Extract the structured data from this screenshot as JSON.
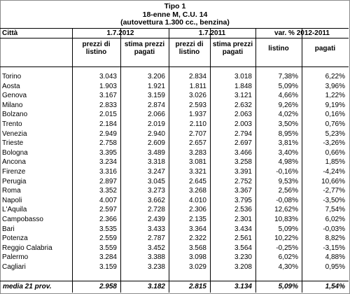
{
  "title": {
    "line1": "Tipo 1",
    "line2": "18-enne M, C.U. 14",
    "line3": "(autovettura 1.300 cc., benzina)"
  },
  "header": {
    "city": "Città",
    "year2012": "1.7.2012",
    "year2011": "1.7.2011",
    "var": "var. % 2012-2011",
    "list_price_l1": "prezzi di",
    "list_price_l2": "listino",
    "paid_est_l1": "stima prezzi",
    "paid_est_l2": "pagati",
    "listino": "listino",
    "pagati": "pagati"
  },
  "rows": [
    {
      "city": "Torino",
      "l12": "3.043",
      "p12": "3.206",
      "l11": "2.834",
      "p11": "3.018",
      "vl": "7,38%",
      "vp": "6,22%"
    },
    {
      "city": "Aosta",
      "l12": "1.903",
      "p12": "1.921",
      "l11": "1.811",
      "p11": "1.848",
      "vl": "5,09%",
      "vp": "3,96%"
    },
    {
      "city": "Genova",
      "l12": "3.167",
      "p12": "3.159",
      "l11": "3.026",
      "p11": "3.121",
      "vl": "4,66%",
      "vp": "1,22%"
    },
    {
      "city": "Milano",
      "l12": "2.833",
      "p12": "2.874",
      "l11": "2.593",
      "p11": "2.632",
      "vl": "9,26%",
      "vp": "9,19%"
    },
    {
      "city": "Bolzano",
      "l12": "2.015",
      "p12": "2.066",
      "l11": "1.937",
      "p11": "2.063",
      "vl": "4,02%",
      "vp": "0,16%"
    },
    {
      "city": "Trento",
      "l12": "2.184",
      "p12": "2.019",
      "l11": "2.110",
      "p11": "2.003",
      "vl": "3,50%",
      "vp": "0,76%"
    },
    {
      "city": "Venezia",
      "l12": "2.949",
      "p12": "2.940",
      "l11": "2.707",
      "p11": "2.794",
      "vl": "8,95%",
      "vp": "5,23%"
    },
    {
      "city": "Trieste",
      "l12": "2.758",
      "p12": "2.609",
      "l11": "2.657",
      "p11": "2.697",
      "vl": "3,81%",
      "vp": "-3,26%"
    },
    {
      "city": "Bologna",
      "l12": "3.395",
      "p12": "3.489",
      "l11": "3.283",
      "p11": "3.466",
      "vl": "3,40%",
      "vp": "0,66%"
    },
    {
      "city": "Ancona",
      "l12": "3.234",
      "p12": "3.318",
      "l11": "3.081",
      "p11": "3.258",
      "vl": "4,98%",
      "vp": "1,85%"
    },
    {
      "city": "Firenze",
      "l12": "3.316",
      "p12": "3.247",
      "l11": "3.321",
      "p11": "3.391",
      "vl": "-0,16%",
      "vp": "-4,24%"
    },
    {
      "city": "Perugia",
      "l12": "2.897",
      "p12": "3.045",
      "l11": "2.645",
      "p11": "2.752",
      "vl": "9,53%",
      "vp": "10,66%"
    },
    {
      "city": "Roma",
      "l12": "3.352",
      "p12": "3.273",
      "l11": "3.268",
      "p11": "3.367",
      "vl": "2,56%",
      "vp": "-2,77%"
    },
    {
      "city": "Napoli",
      "l12": "4.007",
      "p12": "3.662",
      "l11": "4.010",
      "p11": "3.795",
      "vl": "-0,08%",
      "vp": "-3,50%"
    },
    {
      "city": "L'Aquila",
      "l12": "2.597",
      "p12": "2.728",
      "l11": "2.306",
      "p11": "2.536",
      "vl": "12,62%",
      "vp": "7,54%"
    },
    {
      "city": "Campobasso",
      "l12": "2.366",
      "p12": "2.439",
      "l11": "2.135",
      "p11": "2.301",
      "vl": "10,83%",
      "vp": "6,02%"
    },
    {
      "city": "Bari",
      "l12": "3.535",
      "p12": "3.433",
      "l11": "3.364",
      "p11": "3.434",
      "vl": "5,09%",
      "vp": "-0,03%"
    },
    {
      "city": "Potenza",
      "l12": "2.559",
      "p12": "2.787",
      "l11": "2.322",
      "p11": "2.561",
      "vl": "10,22%",
      "vp": "8,82%"
    },
    {
      "city": "Reggio Calabria",
      "l12": "3.559",
      "p12": "3.452",
      "l11": "3.568",
      "p11": "3.564",
      "vl": "-0,25%",
      "vp": "-3,15%"
    },
    {
      "city": "Palermo",
      "l12": "3.284",
      "p12": "3.388",
      "l11": "3.098",
      "p11": "3.230",
      "vl": "6,02%",
      "vp": "4,88%"
    },
    {
      "city": "Cagliari",
      "l12": "3.159",
      "p12": "3.238",
      "l11": "3.029",
      "p11": "3.208",
      "vl": "4,30%",
      "vp": "0,95%"
    }
  ],
  "total": {
    "city": "media 21 prov.",
    "l12": "2.958",
    "p12": "3.182",
    "l11": "2.815",
    "p11": "3.134",
    "vl": "5,09%",
    "vp": "1,54%"
  }
}
